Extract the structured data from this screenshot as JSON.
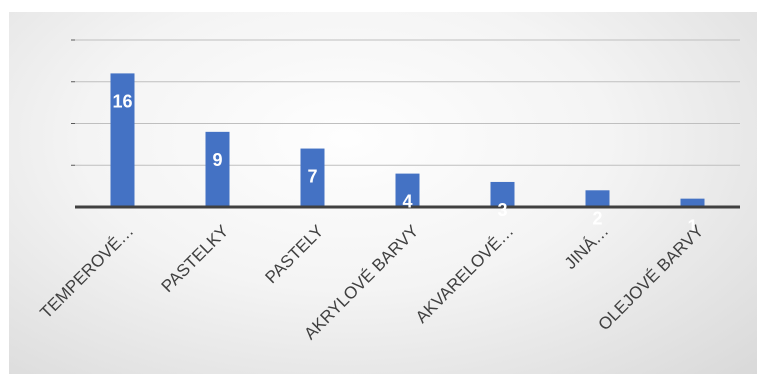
{
  "chart_data": {
    "type": "bar",
    "categories": [
      "TEMPEROVÉ…",
      "PASTELKY",
      "PASTELY",
      "AKRYLOVÉ BARVY",
      "AKVARELOVÉ…",
      "JINÁ…",
      "OLEJOVÉ BARVY"
    ],
    "values": [
      16,
      9,
      7,
      4,
      3,
      2,
      1
    ],
    "title": "",
    "xlabel": "",
    "ylabel": "",
    "ylim": [
      0,
      20
    ],
    "grid": true,
    "legend": "none",
    "colors": {
      "bar": "#4472c4",
      "data_label": "#ffffff",
      "axis": "#404040",
      "grid": "#bfbfbf"
    }
  }
}
